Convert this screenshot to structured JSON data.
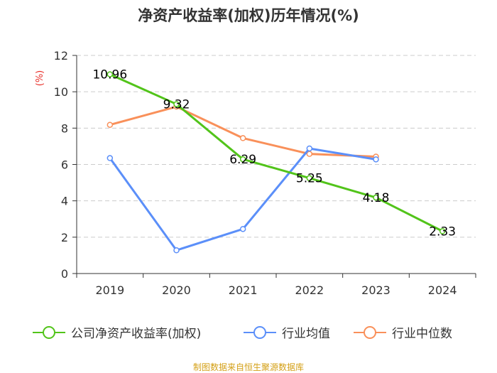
{
  "chart_data": {
    "type": "line",
    "title": "净资产收益率(加权)历年情况(%)",
    "ylabel": "(%)",
    "ylim": [
      0,
      12
    ],
    "yticks": [
      "0",
      "2",
      "4",
      "6",
      "8",
      "10",
      "12"
    ],
    "categories": [
      "2019",
      "2020",
      "2021",
      "2022",
      "2023",
      "2024"
    ],
    "series": [
      {
        "name": "公司净资产收益率(加权)",
        "color": "#52c41a",
        "values": [
          10.96,
          9.32,
          6.29,
          5.25,
          4.18,
          2.33
        ],
        "labels": [
          "10.96",
          "9.32",
          "6.29",
          "5.25",
          "4.18",
          "2.33"
        ]
      },
      {
        "name": "行业均值",
        "color": "#5b8ff9",
        "values": [
          6.35,
          1.28,
          2.45,
          6.88,
          6.28,
          null
        ]
      },
      {
        "name": "行业中位数",
        "color": "#f9905a",
        "values": [
          8.18,
          9.18,
          7.45,
          6.58,
          6.43,
          null
        ]
      }
    ],
    "grid": true,
    "legend": "bottom"
  },
  "colors": {
    "unit_label": "#e8312a",
    "source": "#d4a017",
    "axis": "#333333",
    "grid": "#cccccc"
  },
  "source": "制图数据来自恒生聚源数据库"
}
